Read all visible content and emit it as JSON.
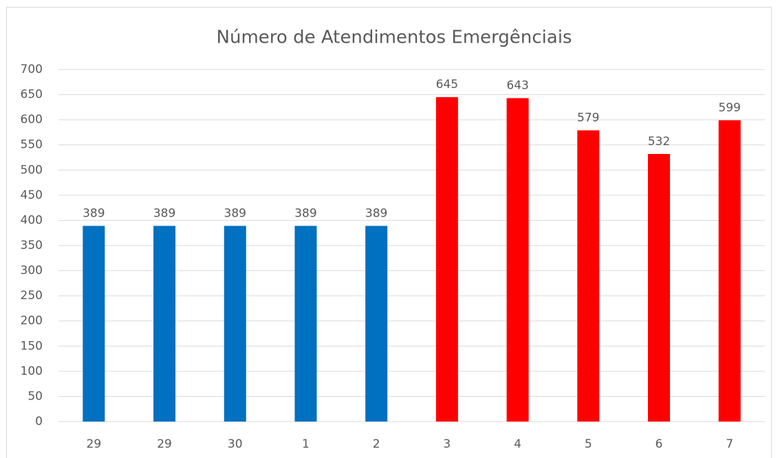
{
  "chart_data": {
    "type": "bar",
    "title": "Número de Atendimentos Emergênciais",
    "categories": [
      "29",
      "29",
      "30",
      "1",
      "2",
      "3",
      "4",
      "5",
      "6",
      "7"
    ],
    "values": [
      389,
      389,
      389,
      389,
      389,
      645,
      643,
      579,
      532,
      599
    ],
    "colors": [
      "#0070c0",
      "#0070c0",
      "#0070c0",
      "#0070c0",
      "#0070c0",
      "#ff0000",
      "#ff0000",
      "#ff0000",
      "#ff0000",
      "#ff0000"
    ],
    "ylim": [
      0,
      700
    ],
    "yticks": [
      0,
      50,
      100,
      150,
      200,
      250,
      300,
      350,
      400,
      450,
      500,
      550,
      600,
      650,
      700
    ],
    "grid": true,
    "data_labels": true
  }
}
